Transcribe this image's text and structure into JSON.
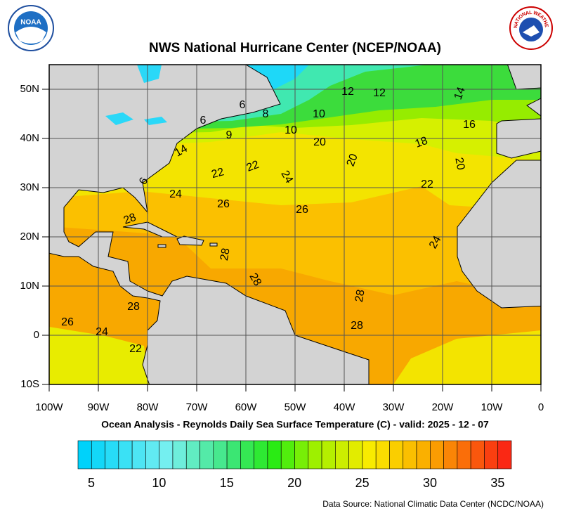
{
  "header": {
    "title": "NWS National Hurricane Center (NCEP/NOAA)",
    "left_logo": "NOAA",
    "right_logo": "NATIONAL WEATHER SERVICE"
  },
  "map": {
    "lon_labels": [
      "100W",
      "90W",
      "80W",
      "70W",
      "60W",
      "50W",
      "40W",
      "30W",
      "20W",
      "10W",
      "0"
    ],
    "lat_labels": [
      "50N",
      "40N",
      "30N",
      "20N",
      "10N",
      "0",
      "10S"
    ],
    "contour_labels": [
      12,
      12,
      14,
      16,
      18,
      20,
      22,
      24,
      10,
      10,
      20,
      20,
      8,
      6,
      6,
      9,
      14,
      22,
      22,
      24,
      24,
      26,
      26,
      28,
      28,
      28,
      28,
      28,
      28,
      26,
      24,
      22,
      6
    ],
    "caption": "Ocean Analysis - Reynolds Daily Sea Surface Temperature (C) - valid: 2025 - 12 - 07",
    "colorbar": {
      "labels": [
        5,
        10,
        15,
        20,
        25,
        30,
        35
      ]
    }
  },
  "footer": {
    "source": "Data Source: National Climatic Data Center (NCDC/NOAA)"
  }
}
